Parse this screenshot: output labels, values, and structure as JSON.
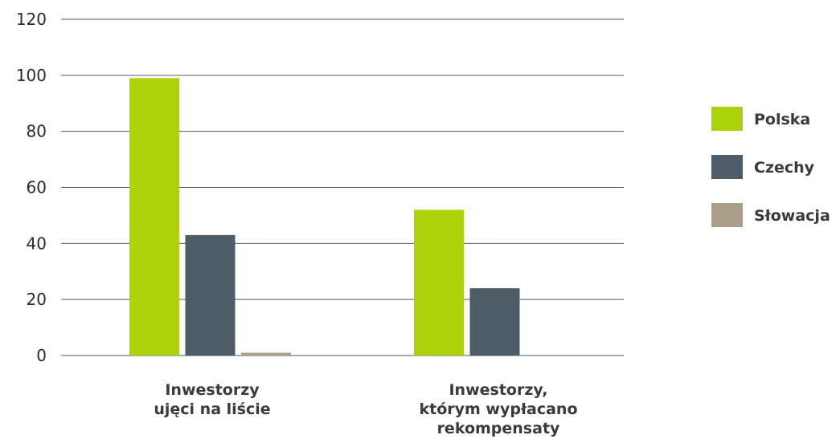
{
  "chart_data": {
    "type": "bar",
    "categories": [
      [
        "Inwestorzy",
        "ujęci na liście"
      ],
      [
        "Inwestorzy,",
        "którym wypłacano",
        "rekompensaty"
      ]
    ],
    "series": [
      {
        "name": "Polska",
        "color": "#acd20a",
        "values": [
          99,
          52
        ]
      },
      {
        "name": "Czechy",
        "color": "#4d5c66",
        "values": [
          43,
          24
        ]
      },
      {
        "name": "Słowacja",
        "color": "#ab9e89",
        "values": [
          1,
          0
        ]
      }
    ],
    "yticks": [
      "0",
      "20",
      "40",
      "60",
      "80",
      "100",
      "120"
    ],
    "ylim": [
      0,
      120
    ],
    "grid": true,
    "legend": "right"
  }
}
